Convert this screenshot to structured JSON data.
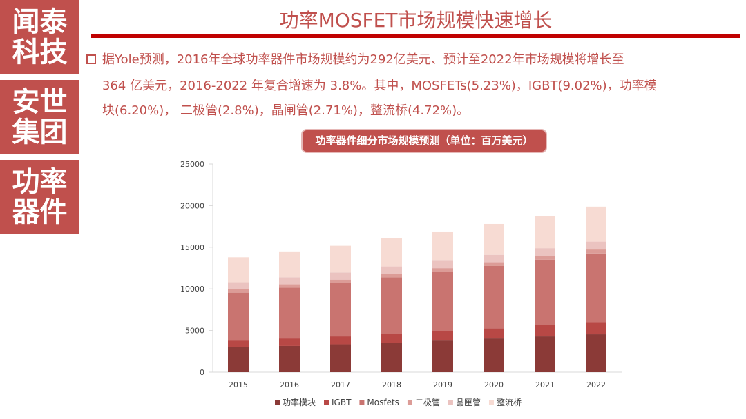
{
  "sidebar": {
    "blocks": [
      {
        "line1": "闻泰",
        "line2": "科技"
      },
      {
        "line1": "安世",
        "line2": "集团"
      },
      {
        "line1": "功率",
        "line2": "器件"
      }
    ]
  },
  "header": {
    "title": "功率MOSFET市场规模快速增长"
  },
  "body_text": {
    "line1": "据Yole预测，2016年全球功率器件市场规模约为292亿美元、预计至2022年市场规模将增长至",
    "line2": "364 亿美元，2016-2022 年复合增速为 3.8%。其中，MOSFETs(5.23%)，IGBT(9.02%)，功率模",
    "line3": "块(6.20%)， 二极管(2.8%)，晶闸管(2.71%)，整流桥(4.72%)。"
  },
  "colors": {
    "accent": "#c0504d",
    "header_rule": "#c00000"
  },
  "chart_data": {
    "type": "bar",
    "stacked": true,
    "title": "功率器件细分市场规模预测（单位：百万美元）",
    "categories": [
      "2015",
      "2016",
      "2017",
      "2018",
      "2019",
      "2020",
      "2021",
      "2022"
    ],
    "ylim": [
      0,
      25000
    ],
    "yticks": [
      "0",
      "5000",
      "10000",
      "15000",
      "20000",
      "25000"
    ],
    "legend_position": "bottom",
    "series": [
      {
        "name": "功率模块",
        "color": "#8b3a37",
        "values": [
          3000,
          3150,
          3350,
          3550,
          3800,
          4050,
          4300,
          4550
        ]
      },
      {
        "name": "IGBT",
        "color": "#b84845",
        "values": [
          800,
          900,
          950,
          1050,
          1100,
          1200,
          1350,
          1450
        ]
      },
      {
        "name": "Mosfets",
        "color": "#c97470",
        "values": [
          5750,
          6100,
          6400,
          6800,
          7150,
          7500,
          7850,
          8250
        ]
      },
      {
        "name": "二极管",
        "color": "#dc9c97",
        "values": [
          400,
          400,
          420,
          430,
          440,
          450,
          470,
          480
        ]
      },
      {
        "name": "晶匣管",
        "color": "#ebc3c0",
        "values": [
          850,
          850,
          860,
          870,
          900,
          900,
          920,
          950
        ]
      },
      {
        "name": "整流桥",
        "color": "#f7dbd3",
        "values": [
          3000,
          3100,
          3200,
          3400,
          3500,
          3700,
          3900,
          4200
        ]
      }
    ]
  }
}
